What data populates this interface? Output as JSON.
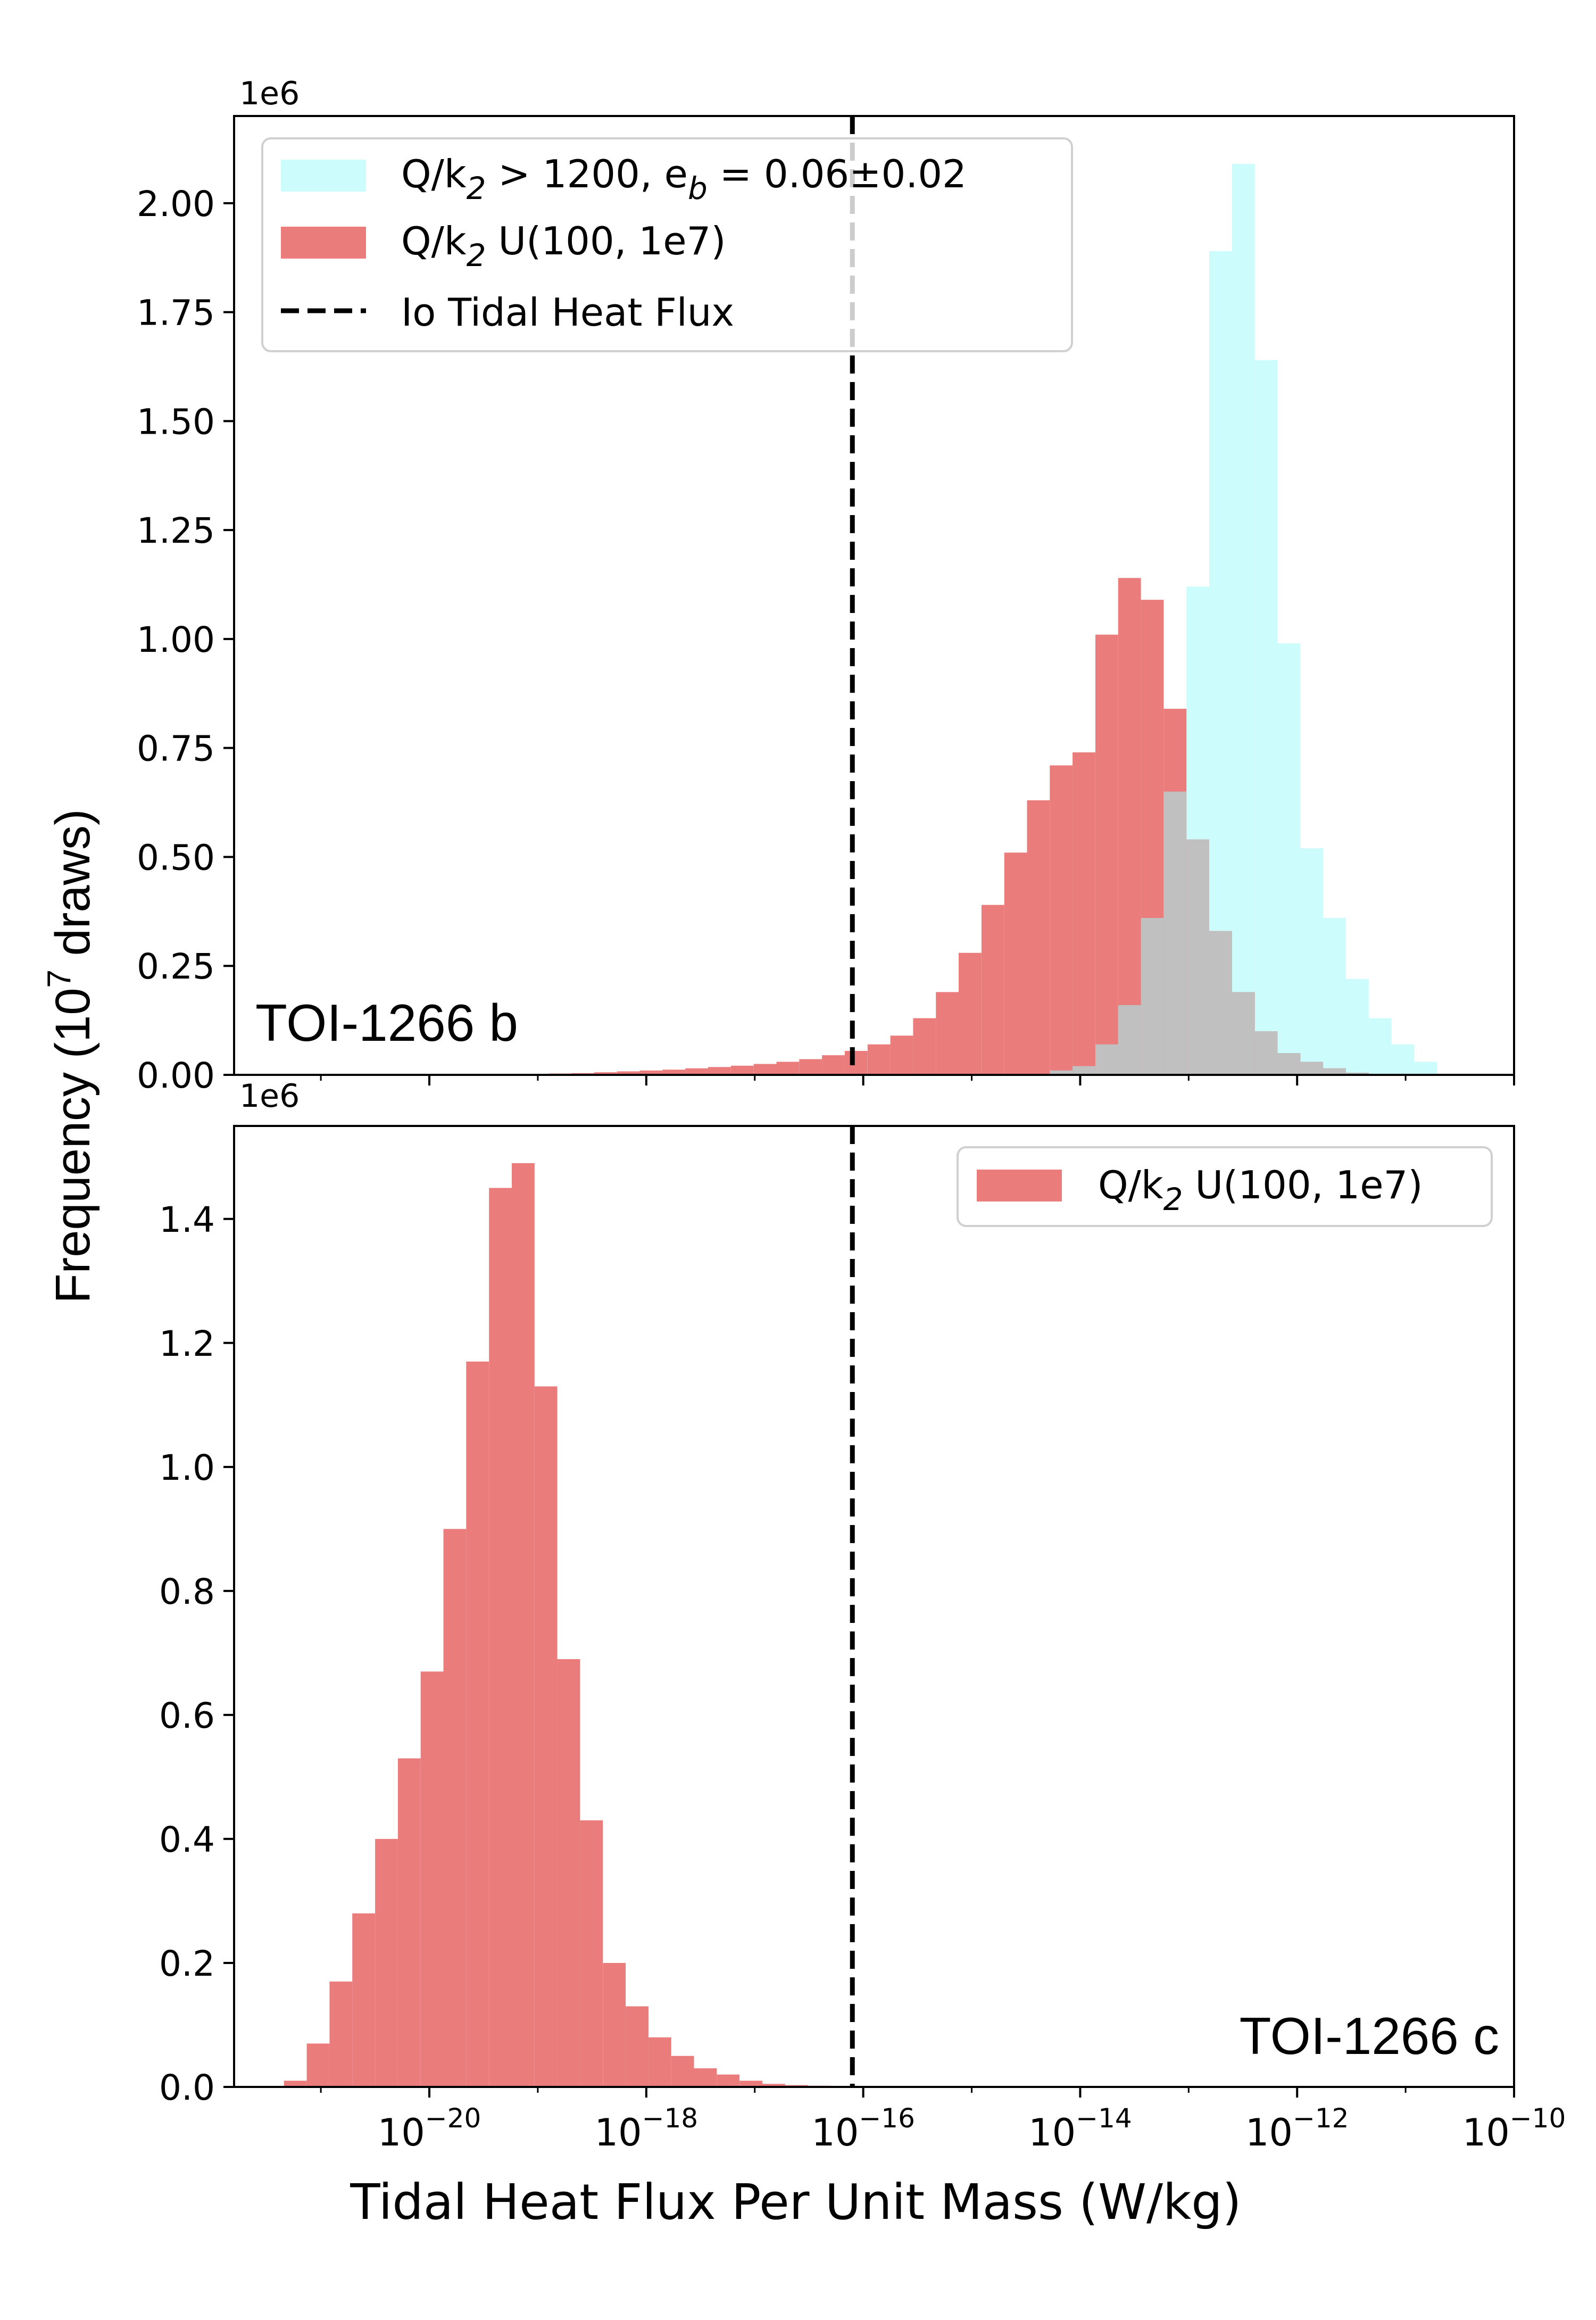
{
  "figure": {
    "shared_ylabel_prefix": "Frequency (10",
    "shared_ylabel_exp": "7",
    "shared_ylabel_suffix": " draws)",
    "shared_xlabel": "Tidal Heat Flux Per Unit Mass (W/kg)",
    "io_flux_log10": -16.1
  },
  "colors": {
    "cyan": "#ccfcfc",
    "red": "#ea7c7c",
    "overlap_gray": "#c0c0c0",
    "axis": "#000000"
  },
  "chart_data": [
    {
      "type": "bar",
      "panel": "top",
      "title": "",
      "annotation": "TOI-1266 b",
      "offset_text": "1e6",
      "xscale": "log",
      "xlim_log10": [
        -21.8,
        -10
      ],
      "ylim": [
        0,
        2.2
      ],
      "yticks": [
        "0.00",
        "0.25",
        "0.50",
        "0.75",
        "1.00",
        "1.25",
        "1.50",
        "1.75",
        "2.00"
      ],
      "ytick_values": [
        0,
        0.25,
        0.5,
        0.75,
        1.0,
        1.25,
        1.5,
        1.75,
        2.0
      ],
      "legend_position": "upper left",
      "series": [
        {
          "name": "Q/k2 > 1200, eb = 0.06±0.02",
          "legend_main": "Q/k",
          "legend_sub": "2",
          "legend_mid": " > 1200, e",
          "legend_sub2": "b",
          "legend_end": " = 0.06±0.02",
          "color": "cyan",
          "bin_left_log10": [
            -16.8,
            -16.59,
            -16.38,
            -16.17,
            -15.96,
            -15.75,
            -15.54,
            -15.33,
            -15.12,
            -14.91,
            -14.7,
            -14.49,
            -14.28,
            -14.07,
            -13.86,
            -13.65,
            -13.44,
            -13.23,
            -13.02,
            -12.81,
            -12.6,
            -12.39,
            -12.18,
            -11.97,
            -11.76,
            -11.55,
            -11.34,
            -11.13,
            -10.92
          ],
          "values": [
            0.0,
            0.0,
            0.0,
            0.0,
            0.0,
            0.0,
            0.0,
            0.0,
            0.0,
            0.0,
            0.0,
            0.0,
            0.01,
            0.02,
            0.07,
            0.16,
            0.36,
            0.65,
            1.12,
            1.89,
            2.09,
            1.64,
            0.99,
            0.52,
            0.36,
            0.22,
            0.13,
            0.07,
            0.03
          ],
          "bin_width_log10": 0.21
        },
        {
          "name": "Q/k2 U(100, 1e7)",
          "legend_main": "Q/k",
          "legend_sub": "2",
          "legend_end": " U(100, 1e7)",
          "color": "red",
          "bin_left_log10": [
            -19.74,
            -19.53,
            -19.32,
            -19.11,
            -18.9,
            -18.69,
            -18.48,
            -18.27,
            -18.06,
            -17.85,
            -17.64,
            -17.43,
            -17.22,
            -17.01,
            -16.8,
            -16.59,
            -16.38,
            -16.17,
            -15.96,
            -15.75,
            -15.54,
            -15.33,
            -15.12,
            -14.91,
            -14.7,
            -14.49,
            -14.28,
            -14.07,
            -13.86,
            -13.65,
            -13.44,
            -13.23,
            -13.02,
            -12.81,
            -12.6,
            -12.39,
            -12.18,
            -11.97,
            -11.76,
            -11.55,
            -11.34
          ],
          "values": [
            0.0,
            0.0,
            0.0,
            0.002,
            0.003,
            0.004,
            0.006,
            0.008,
            0.01,
            0.012,
            0.015,
            0.018,
            0.021,
            0.025,
            0.03,
            0.036,
            0.045,
            0.055,
            0.07,
            0.09,
            0.13,
            0.19,
            0.28,
            0.39,
            0.51,
            0.63,
            0.71,
            0.74,
            1.01,
            1.14,
            1.09,
            0.84,
            0.54,
            0.33,
            0.19,
            0.1,
            0.05,
            0.03,
            0.015,
            0.005,
            0.002
          ],
          "bin_width_log10": 0.21
        }
      ],
      "io_line_label": "Io Tidal Heat Flux"
    },
    {
      "type": "bar",
      "panel": "bottom",
      "title": "",
      "annotation": "TOI-1266 c",
      "offset_text": "1e6",
      "xscale": "log",
      "xlim_log10": [
        -21.8,
        -10
      ],
      "ylim": [
        0,
        1.55
      ],
      "yticks": [
        "0.0",
        "0.2",
        "0.4",
        "0.6",
        "0.8",
        "1.0",
        "1.2",
        "1.4"
      ],
      "ytick_values": [
        0,
        0.2,
        0.4,
        0.6,
        0.8,
        1.0,
        1.2,
        1.4
      ],
      "xticks_log10": [
        -20,
        -18,
        -16,
        -14,
        -12,
        -10
      ],
      "xtick_base": "10",
      "xtick_exps": [
        "−20",
        "−18",
        "−16",
        "−14",
        "−12",
        "−10"
      ],
      "legend_position": "upper right",
      "series": [
        {
          "name": "Q/k2 U(100, 1e7)",
          "legend_main": "Q/k",
          "legend_sub": "2",
          "legend_end": " U(100, 1e7)",
          "color": "red",
          "bin_left_log10": [
            -21.34,
            -21.13,
            -20.92,
            -20.71,
            -20.5,
            -20.29,
            -20.08,
            -19.87,
            -19.66,
            -19.45,
            -19.24,
            -19.03,
            -18.82,
            -18.61,
            -18.4,
            -18.19,
            -17.98,
            -17.77,
            -17.56,
            -17.35,
            -17.14,
            -16.93,
            -16.72,
            -16.51,
            -16.3
          ],
          "values": [
            0.01,
            0.07,
            0.17,
            0.28,
            0.4,
            0.53,
            0.67,
            0.9,
            1.17,
            1.45,
            1.49,
            1.13,
            0.69,
            0.43,
            0.2,
            0.13,
            0.08,
            0.05,
            0.03,
            0.02,
            0.01,
            0.005,
            0.003,
            0.002,
            0.001
          ],
          "bin_width_log10": 0.21
        }
      ]
    }
  ]
}
